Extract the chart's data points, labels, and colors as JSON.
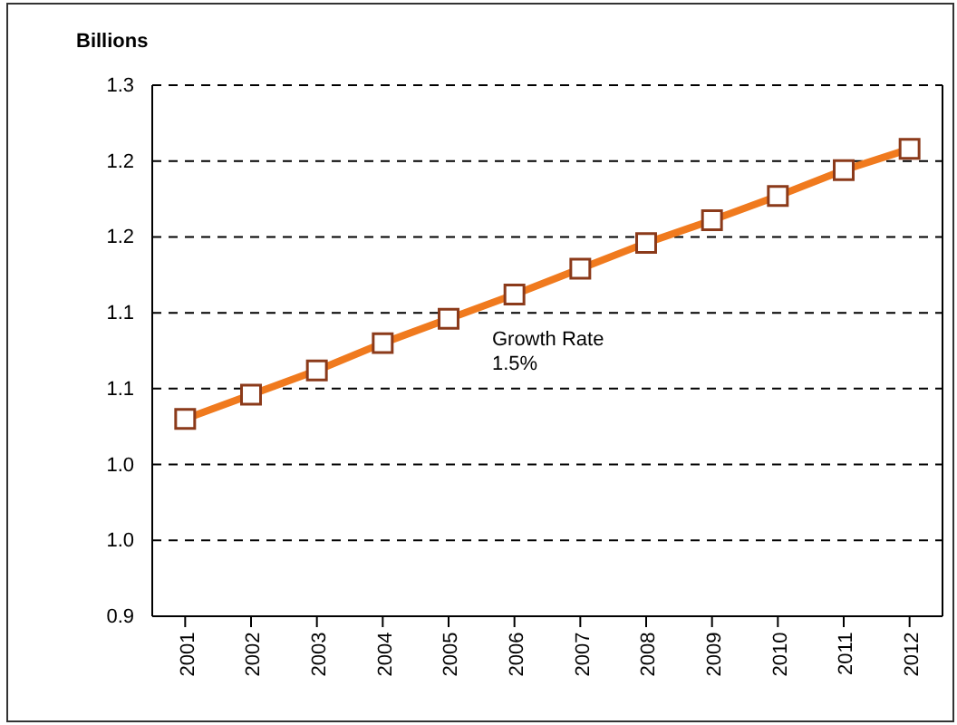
{
  "chart_data": {
    "type": "line",
    "ylabel": "Billions",
    "categories": [
      "2001",
      "2002",
      "2003",
      "2004",
      "2005",
      "2006",
      "2007",
      "2008",
      "2009",
      "2010",
      "2011",
      "2012"
    ],
    "series": [
      {
        "color": "#f07a1e",
        "values": [
          1.03,
          1.046,
          1.062,
          1.08,
          1.096,
          1.112,
          1.129,
          1.146,
          1.161,
          1.177,
          1.194,
          1.208
        ]
      }
    ],
    "ylim": [
      0.9,
      1.25
    ],
    "yticks": [
      {
        "value": 0.9,
        "label": "0.9"
      },
      {
        "value": 0.95,
        "label": "1.0"
      },
      {
        "value": 1.0,
        "label": "1.0"
      },
      {
        "value": 1.05,
        "label": "1.1"
      },
      {
        "value": 1.1,
        "label": "1.1"
      },
      {
        "value": 1.15,
        "label": "1.2"
      },
      {
        "value": 1.2,
        "label": "1.2"
      },
      {
        "value": 1.25,
        "label": "1.3"
      }
    ],
    "grid": "y",
    "marker": "square",
    "line_style": "solid",
    "annotations": [
      "Growth Rate\n1.5%"
    ]
  }
}
